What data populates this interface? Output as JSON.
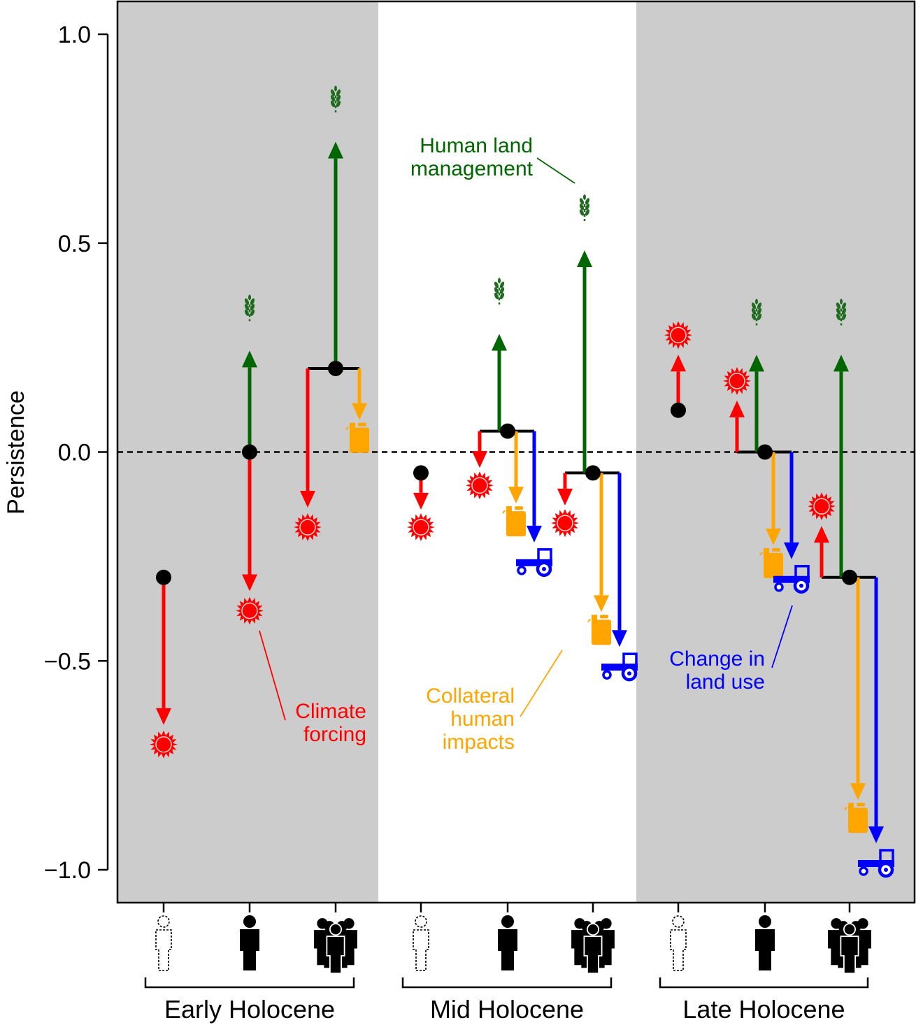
{
  "chart_data": {
    "type": "arrow-decomposition",
    "ylabel": "Persistence",
    "ylim": [
      -1.08,
      1.07
    ],
    "yticks": [
      1.0,
      0.5,
      0.0,
      -0.5,
      -1.0
    ],
    "ytick_labels": [
      "1.0",
      "0.5",
      "0.0",
      "−0.5",
      "−1.0"
    ],
    "reference_line": 0.0,
    "periods": [
      {
        "name": "Early Holocene",
        "shaded": true
      },
      {
        "name": "Mid Holocene",
        "shaded": false
      },
      {
        "name": "Late Holocene",
        "shaded": true
      }
    ],
    "population_levels": [
      "none",
      "low",
      "high"
    ],
    "drivers": {
      "climate": {
        "label": "Climate forcing",
        "color": "#ff0000",
        "icon": "sun-icon"
      },
      "land_management": {
        "label": "Human land management",
        "color": "#006600",
        "icon": "wheat-icon"
      },
      "collateral": {
        "label": "Collateral human impacts",
        "color": "#ffa500",
        "icon": "fuel-can-icon"
      },
      "land_use": {
        "label": "Change in land use",
        "color": "#0000ff",
        "icon": "tractor-icon"
      }
    },
    "groups": [
      {
        "period": "Early Holocene",
        "population": "none",
        "base": -0.3,
        "effects": {
          "climate": -0.7
        }
      },
      {
        "period": "Early Holocene",
        "population": "low",
        "base": 0.0,
        "effects": {
          "climate": -0.38,
          "land_management": 0.34
        }
      },
      {
        "period": "Early Holocene",
        "population": "high",
        "base": 0.2,
        "effects": {
          "climate": -0.18,
          "land_management": 0.84,
          "collateral": 0.03
        }
      },
      {
        "period": "Mid Holocene",
        "population": "none",
        "base": -0.05,
        "effects": {
          "climate": -0.18
        }
      },
      {
        "period": "Mid Holocene",
        "population": "low",
        "base": 0.05,
        "effects": {
          "climate": -0.08,
          "land_management": 0.38,
          "collateral": -0.17,
          "land_use": -0.27
        }
      },
      {
        "period": "Mid Holocene",
        "population": "high",
        "base": -0.05,
        "effects": {
          "climate": -0.17,
          "land_management": 0.58,
          "collateral": -0.43,
          "land_use": -0.52
        }
      },
      {
        "period": "Late Holocene",
        "population": "none",
        "base": 0.1,
        "effects": {
          "climate": 0.28
        }
      },
      {
        "period": "Late Holocene",
        "population": "low",
        "base": 0.0,
        "effects": {
          "climate": 0.17,
          "land_management": 0.33,
          "collateral": -0.27,
          "land_use": -0.31
        }
      },
      {
        "period": "Late Holocene",
        "population": "high",
        "base": -0.3,
        "effects": {
          "climate": -0.13,
          "land_management": 0.33,
          "collateral": -0.88,
          "land_use": -0.99
        }
      }
    ]
  }
}
